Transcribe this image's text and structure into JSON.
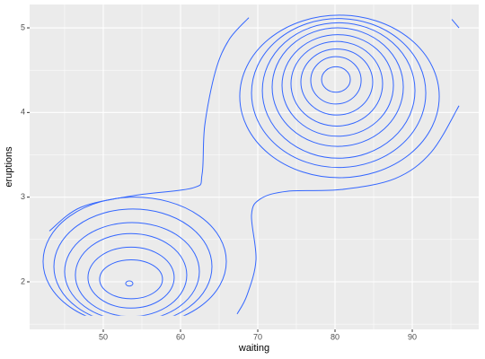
{
  "chart_data": {
    "type": "density2d",
    "x_label": "waiting",
    "y_label": "eruptions",
    "xlim": [
      40.47,
      98.6
    ],
    "ylim": [
      1.438,
      5.276
    ],
    "xticks": [
      50,
      60,
      70,
      80,
      90
    ],
    "yticks": [
      2,
      3,
      4,
      5
    ],
    "xminor": [
      45,
      55,
      65,
      75,
      85,
      95
    ],
    "yminor": [
      1.5,
      2.5,
      3.5,
      4.5
    ],
    "grid": true,
    "color": "#3366ff",
    "grid_y_min": 1.6,
    "rings": [
      {
        "cx": 80.12,
        "cy": 4.39,
        "rx": 1.86,
        "ry": 0.15
      },
      {
        "cx": 80.12,
        "cy": 4.38,
        "rx": 3.26,
        "ry": 0.28
      },
      {
        "cx": 80.23,
        "cy": 4.36,
        "rx": 4.65,
        "ry": 0.39
      },
      {
        "cx": 80.23,
        "cy": 4.34,
        "rx": 5.93,
        "ry": 0.5
      },
      {
        "cx": 80.35,
        "cy": 4.32,
        "rx": 7.21,
        "ry": 0.6
      },
      {
        "cx": 80.35,
        "cy": 4.3,
        "rx": 8.49,
        "ry": 0.7
      },
      {
        "cx": 80.47,
        "cy": 4.26,
        "rx": 9.88,
        "ry": 0.8
      },
      {
        "cx": 80.47,
        "cy": 4.23,
        "rx": 11.28,
        "ry": 0.88
      },
      {
        "cx": 80.58,
        "cy": 4.19,
        "rx": 12.91,
        "ry": 0.96
      },
      {
        "cx": 53.37,
        "cy": 1.98,
        "rx": 0.47,
        "ry": 0.03
      },
      {
        "cx": 53.6,
        "cy": 2.03,
        "rx": 4.07,
        "ry": 0.23
      },
      {
        "cx": 53.6,
        "cy": 2.05,
        "rx": 5.58,
        "ry": 0.36
      },
      {
        "cx": 53.6,
        "cy": 2.08,
        "rx": 7.21,
        "ry": 0.49
      },
      {
        "cx": 53.72,
        "cy": 2.12,
        "rx": 8.72,
        "ry": 0.58
      },
      {
        "cx": 53.84,
        "cy": 2.18,
        "rx": 10.23,
        "ry": 0.68
      },
      {
        "cx": 54.07,
        "cy": 2.24,
        "rx": 11.86,
        "ry": 0.76
      }
    ],
    "paths": [
      {
        "x": [
          96.05,
          92.44,
          87.79,
          80.81,
          73.84,
          70.35,
          69.19,
          69.77,
          68.6,
          67.33
        ],
        "y": [
          4.08,
          3.53,
          3.22,
          3.09,
          3.07,
          2.98,
          2.79,
          2.26,
          1.84,
          1.62
        ]
      },
      {
        "x": [
          68.84,
          66.28,
          64.53,
          63.14,
          62.79,
          61.63,
          54.07,
          47.09,
          43.02
        ],
        "y": [
          5.12,
          4.86,
          4.49,
          3.85,
          3.27,
          3.11,
          3.02,
          2.88,
          2.6
        ]
      },
      {
        "x": [
          95.12,
          96.05
        ],
        "y": [
          5.1,
          5.0
        ]
      }
    ]
  }
}
